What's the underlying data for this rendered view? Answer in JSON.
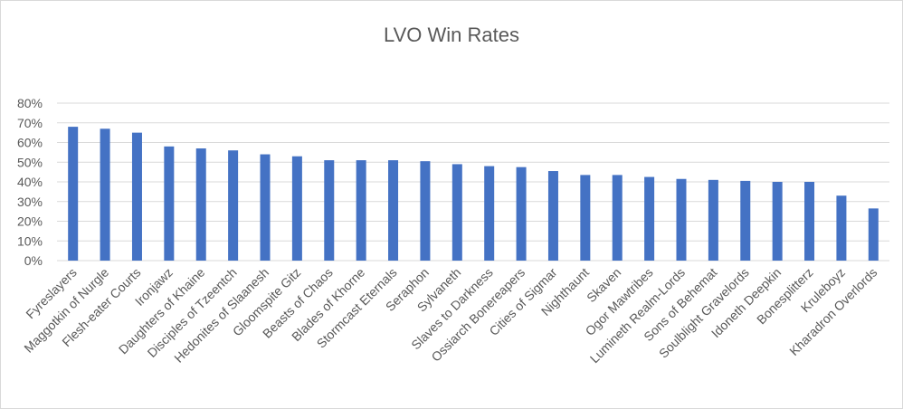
{
  "chart_data": {
    "type": "bar",
    "title": "LVO Win Rates",
    "xlabel": "",
    "ylabel": "",
    "ylim": [
      0,
      0.8
    ],
    "yticks": [
      "0%",
      "10%",
      "20%",
      "30%",
      "40%",
      "50%",
      "60%",
      "70%",
      "80%"
    ],
    "grid": true,
    "legend": "none",
    "bar_color": "#4472c4",
    "grid_color": "#d9d9d9",
    "text_color": "#595959",
    "categories": [
      "Fyreslayers",
      "Maggotkin of Nurgle",
      "Flesh-eater Courts",
      "Ironjawz",
      "Daughters of Khaine",
      "Disciples of Tzeentch",
      "Hedonites of Slaanesh",
      "Gloomspite Gitz",
      "Beasts of Chaos",
      "Blades of Khorne",
      "Stormcast Eternals",
      "Seraphon",
      "Sylvaneth",
      "Slaves to Darkness",
      "Ossiarch Bonereapers",
      "Cities of Sigmar",
      "Nighthaunt",
      "Skaven",
      "Ogor Mawtribes",
      "Lumineth Realm-Lords",
      "Sons of Behemat",
      "Soulblight Gravelords",
      "Idoneth Deepkin",
      "Bonesplitterz",
      "Kruleboyz",
      "Kharadron Overlords"
    ],
    "values": [
      0.68,
      0.67,
      0.65,
      0.58,
      0.57,
      0.56,
      0.54,
      0.53,
      0.51,
      0.51,
      0.51,
      0.505,
      0.49,
      0.48,
      0.475,
      0.455,
      0.435,
      0.435,
      0.425,
      0.415,
      0.41,
      0.405,
      0.4,
      0.4,
      0.33,
      0.265
    ]
  }
}
